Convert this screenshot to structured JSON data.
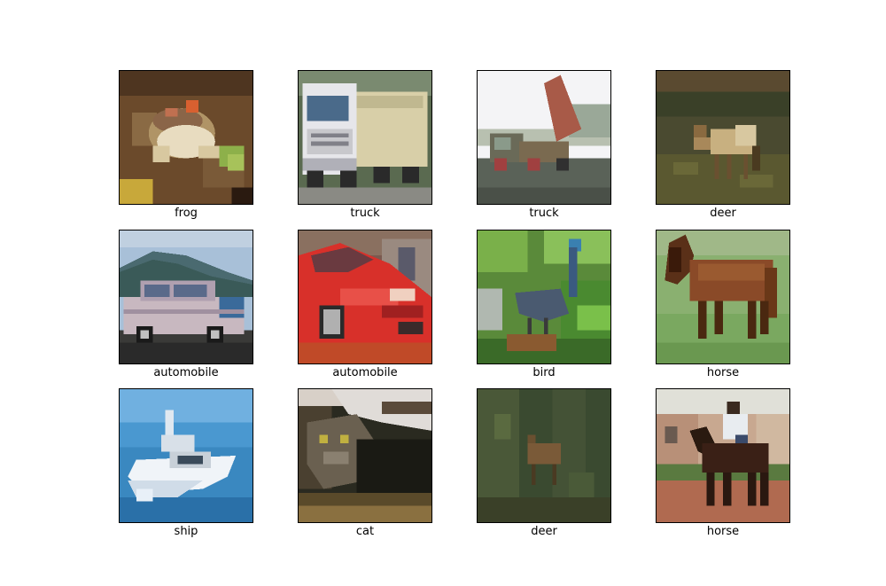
{
  "grid": {
    "items": [
      {
        "label": "frog",
        "scene": "frog"
      },
      {
        "label": "truck",
        "scene": "truck"
      },
      {
        "label": "truck",
        "scene": "dump-truck"
      },
      {
        "label": "deer",
        "scene": "deer"
      },
      {
        "label": "automobile",
        "scene": "car-silver"
      },
      {
        "label": "automobile",
        "scene": "car-red"
      },
      {
        "label": "bird",
        "scene": "bird"
      },
      {
        "label": "horse",
        "scene": "horse"
      },
      {
        "label": "ship",
        "scene": "ship"
      },
      {
        "label": "cat",
        "scene": "cat"
      },
      {
        "label": "deer",
        "scene": "deer-dark"
      },
      {
        "label": "horse",
        "scene": "horse-rider"
      }
    ]
  }
}
